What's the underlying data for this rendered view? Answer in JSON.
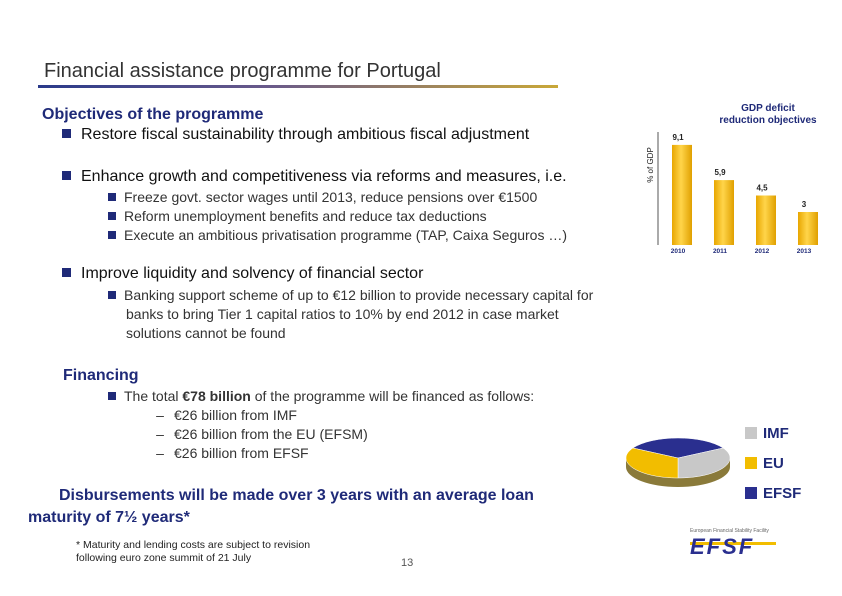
{
  "header": {
    "title": "Financial assistance programme for Portugal"
  },
  "objectives": {
    "heading": "Objectives of the programme",
    "items": [
      {
        "label": "Restore fiscal sustainability through ambitious fiscal adjustment"
      },
      {
        "label": "Enhance growth and competitiveness via reforms and measures, i.e.",
        "subitems": [
          "Freeze govt. sector wages until 2013, reduce pensions over €1500",
          "Reform unemployment benefits and reduce tax deductions",
          "Execute an ambitious privatisation programme (TAP, Caixa Seguros …)"
        ]
      },
      {
        "label": "Improve liquidity and solvency of financial sector",
        "subitems": [
          "Banking support scheme of up to €12 billion to provide necessary capital for",
          "banks to bring Tier 1 capital ratios to 10% by end 2012 in case market",
          "solutions cannot be found"
        ]
      }
    ]
  },
  "financing": {
    "heading": "Financing",
    "intro_pre": "The total ",
    "intro_bold": "€78 billion",
    "intro_post": " of the programme will be financed as follows:",
    "lines": [
      "€26 billion from IMF",
      "€26 billion from the EU (EFSM)",
      "€26 billion from EFSF"
    ]
  },
  "disbursement": {
    "line1": "Disbursements will be made over 3 years with an average loan",
    "line2": "maturity of 7½ years*"
  },
  "footnote": {
    "line1": "* Maturity and lending costs are subject to revision",
    "line2": "following euro zone summit of 21 July"
  },
  "page_number": "13",
  "logo": {
    "tagline": "European Financial Stability Facility",
    "text": "EFSF"
  },
  "colors": {
    "accent": "#1f2a78",
    "gold": "#f2bd00",
    "grey": "#c8c8c8",
    "navy": "#2a2f8f"
  },
  "chart_data": [
    {
      "type": "bar",
      "title": "GDP deficit\nreduction objectives",
      "title_line1": "GDP deficit",
      "title_line2": "reduction objectives",
      "ylabel": "% of GDP",
      "categories": [
        "2010",
        "2011",
        "2012",
        "2013"
      ],
      "values": [
        9.1,
        5.9,
        4.5,
        3
      ],
      "value_labels": [
        "9,1",
        "5,9",
        "4,5",
        "3"
      ],
      "ylim": [
        0,
        10
      ],
      "grid": false
    },
    {
      "type": "pie",
      "labels": [
        "IMF",
        "EU",
        "EFSF"
      ],
      "values": [
        26,
        26,
        26
      ],
      "colors": [
        "#c8c8c8",
        "#f2bd00",
        "#2a2f8f"
      ],
      "legend": "right"
    }
  ]
}
